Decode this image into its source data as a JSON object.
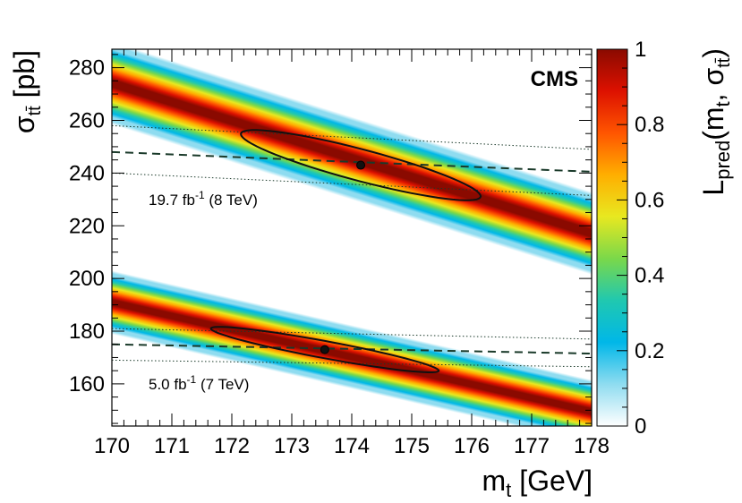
{
  "chart_data": {
    "type": "heatmap",
    "title": "CMS",
    "xlabel": {
      "main": "m",
      "sub": "t",
      "unit": " [GeV]"
    },
    "ylabel": {
      "main": "σ",
      "sub": "tt̄",
      "unit": " [pb]"
    },
    "xlim": [
      170,
      178
    ],
    "ylim": [
      144,
      287
    ],
    "x_ticks": [
      "170",
      "171",
      "172",
      "173",
      "174",
      "175",
      "176",
      "177",
      "178"
    ],
    "y_ticks": [
      {
        "label": "160",
        "value": 160
      },
      {
        "label": "180",
        "value": 180
      },
      {
        "label": "200",
        "value": 200
      },
      {
        "label": "220",
        "value": 220
      },
      {
        "label": "240",
        "value": 240
      },
      {
        "label": "260",
        "value": 260
      },
      {
        "label": "280",
        "value": 280
      }
    ],
    "colorbar": {
      "range": [
        0,
        1
      ],
      "ticks": [
        {
          "label": "0",
          "value": 0
        },
        {
          "label": "0.2",
          "value": 0.2
        },
        {
          "label": "0.4",
          "value": 0.4
        },
        {
          "label": "0.6",
          "value": 0.6
        },
        {
          "label": "0.8",
          "value": 0.8
        },
        {
          "label": "1",
          "value": 1
        }
      ],
      "label": {
        "main": "L",
        "sub1": "pred",
        "mid": "(m",
        "sub2": "t",
        "sep": ", σ",
        "sub3": "tt̄",
        "end": ")"
      },
      "colors": [
        "#ffffff",
        "#8fdcf0",
        "#00b7e8",
        "#20c8b0",
        "#7ad84a",
        "#e8e820",
        "#ffae00",
        "#ff5500",
        "#dd1100",
        "#8a0a00"
      ]
    },
    "datasets": [
      {
        "name": "8 TeV",
        "label": "19.7 fb",
        "label_sup": "-1",
        "label_rest": " (8 TeV)",
        "band": {
          "y_at_170": 274,
          "slope": -7.1,
          "sigma": 6.5
        },
        "best_fit": {
          "x": 174.15,
          "y": 243
        },
        "ellipse": {
          "x_half": 2.0,
          "slope": -5.9,
          "y_half": 6.2
        },
        "theory_central": {
          "y_at_170": 248,
          "y_at_178": 240.5
        },
        "theory_upper": {
          "y_at_170": 258,
          "y_at_178": 249
        },
        "theory_lower": {
          "y_at_170": 240,
          "y_at_178": 231.5
        }
      },
      {
        "name": "7 TeV",
        "label": "5.0 fb",
        "label_sup": "-1",
        "label_rest": " (7 TeV)",
        "band": {
          "y_at_170": 191,
          "slope": -5.2,
          "sigma": 5.0
        },
        "best_fit": {
          "x": 173.55,
          "y": 173
        },
        "ellipse": {
          "x_half": 1.9,
          "slope": -4.2,
          "y_half": 3.3
        },
        "theory_central": {
          "y_at_170": 175,
          "y_at_178": 171.5
        },
        "theory_upper": {
          "y_at_170": 181,
          "y_at_178": 177
        },
        "theory_lower": {
          "y_at_170": 169,
          "y_at_178": 166.5
        }
      }
    ]
  }
}
